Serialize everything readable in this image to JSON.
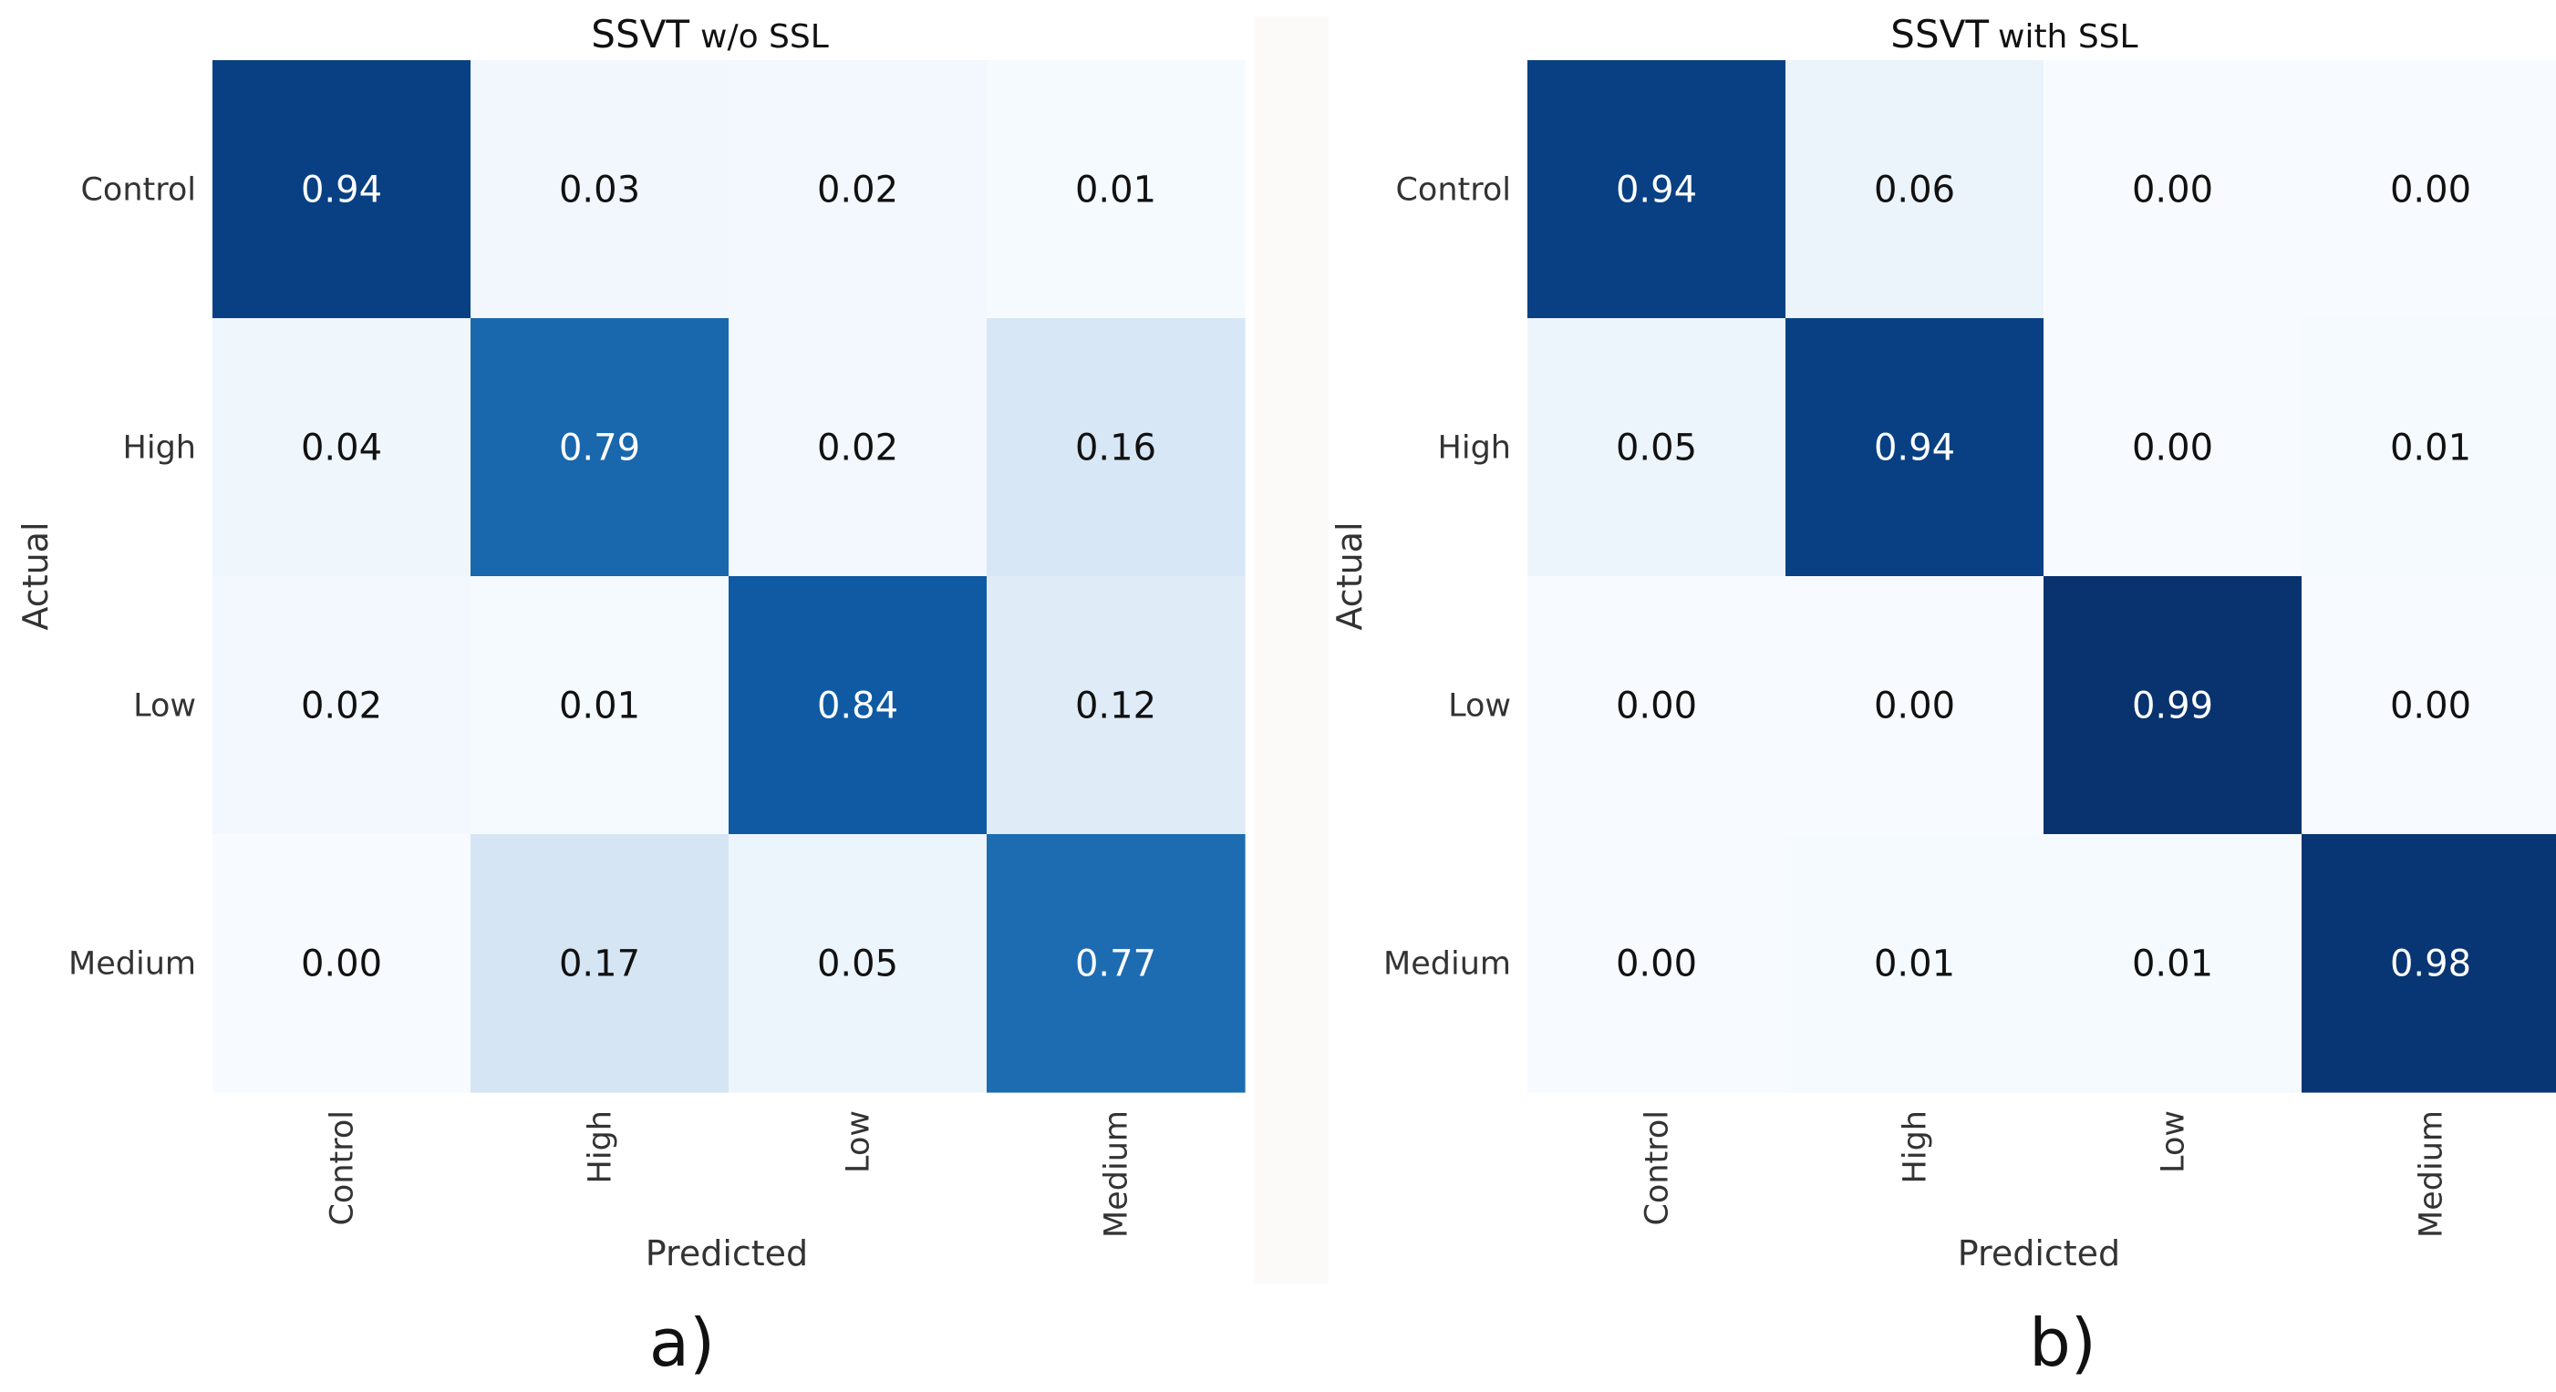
{
  "chart_data": [
    {
      "type": "heatmap",
      "title_main": "SSVT",
      "title_suffix": "w/o SSL",
      "xlabel": "Predicted",
      "ylabel": "Actual",
      "x_categories": [
        "Control",
        "High",
        "Low",
        "Medium"
      ],
      "y_categories": [
        "Control",
        "High",
        "Low",
        "Medium"
      ],
      "values": [
        [
          0.94,
          0.03,
          0.02,
          0.01
        ],
        [
          0.04,
          0.79,
          0.02,
          0.16
        ],
        [
          0.02,
          0.01,
          0.84,
          0.12
        ],
        [
          0.0,
          0.17,
          0.05,
          0.77
        ]
      ],
      "value_labels": [
        [
          "0.94",
          "0.03",
          "0.02",
          "0.01"
        ],
        [
          "0.04",
          "0.79",
          "0.02",
          "0.16"
        ],
        [
          "0.02",
          "0.01",
          "0.84",
          "0.12"
        ],
        [
          "0.00",
          "0.17",
          "0.05",
          "0.77"
        ]
      ],
      "colormap": "Blues",
      "vmin": 0,
      "vmax": 1,
      "panel_label": "a)"
    },
    {
      "type": "heatmap",
      "title_main": "SSVT",
      "title_suffix": "with SSL",
      "xlabel": "Predicted",
      "ylabel": "Actual",
      "x_categories": [
        "Control",
        "High",
        "Low",
        "Medium"
      ],
      "y_categories": [
        "Control",
        "High",
        "Low",
        "Medium"
      ],
      "values": [
        [
          0.94,
          0.06,
          0.0,
          0.0
        ],
        [
          0.05,
          0.94,
          0.0,
          0.01
        ],
        [
          0.0,
          0.0,
          0.99,
          0.0
        ],
        [
          0.0,
          0.01,
          0.01,
          0.98
        ]
      ],
      "value_labels": [
        [
          "0.94",
          "0.06",
          "0.00",
          "0.00"
        ],
        [
          "0.05",
          "0.94",
          "0.00",
          "0.01"
        ],
        [
          "0.00",
          "0.00",
          "0.99",
          "0.00"
        ],
        [
          "0.00",
          "0.01",
          "0.01",
          "0.98"
        ]
      ],
      "colormap": "Blues",
      "vmin": 0,
      "vmax": 1,
      "panel_label": "b)"
    }
  ]
}
